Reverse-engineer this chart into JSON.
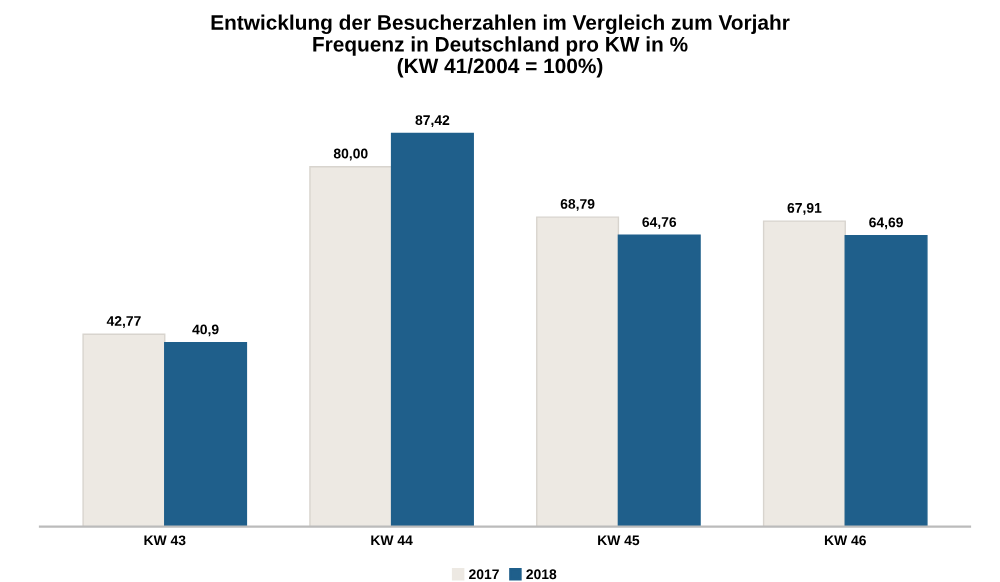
{
  "chart_data": {
    "type": "bar",
    "title": "Entwicklung der Besucherzahlen im Vergleich zum Vorjahr\nFrequenz in Deutschland pro KW in %\n(KW 41/2004 = 100%)",
    "categories": [
      "KW 43",
      "KW 44",
      "KW 45",
      "KW 46"
    ],
    "series": [
      {
        "name": "2017",
        "color": "#ede9e3",
        "values": [
          42.77,
          80.0,
          68.79,
          67.91
        ],
        "value_labels": [
          "42,77",
          "80,00",
          "68,79",
          "67,91"
        ]
      },
      {
        "name": "2018",
        "color": "#1f5f8b",
        "values": [
          40.9,
          87.42,
          64.76,
          64.69
        ],
        "value_labels": [
          "40,9",
          "87,42",
          "64,76",
          "64,69"
        ]
      }
    ],
    "legend": "bottom",
    "grid": false
  }
}
